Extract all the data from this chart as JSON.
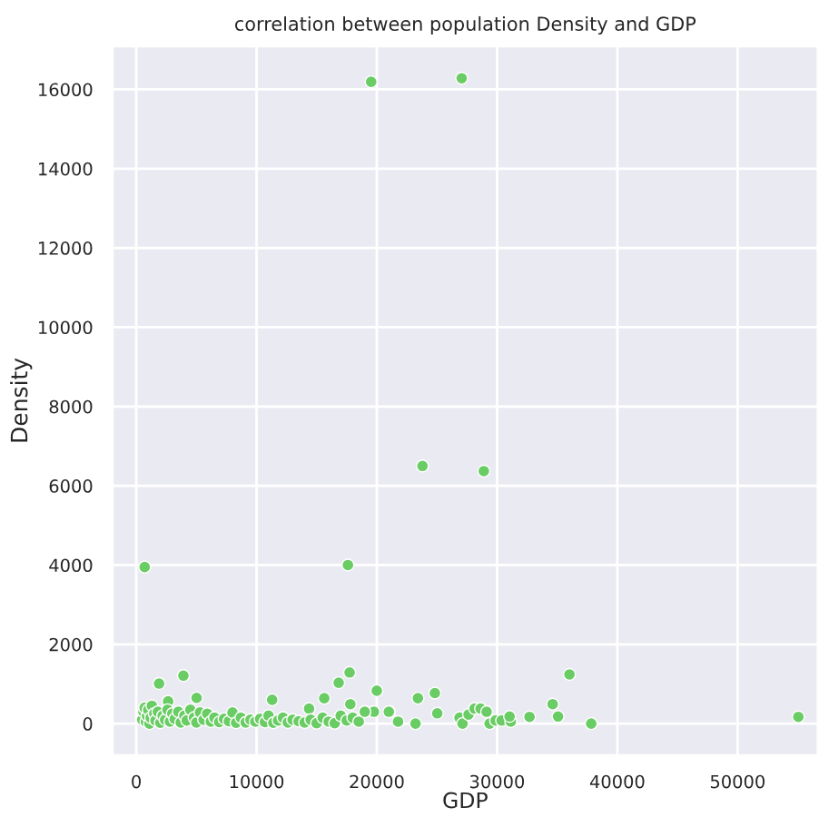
{
  "chart_data": {
    "type": "scatter",
    "title": "correlation between population Density and GDP",
    "xlabel": "GDP",
    "ylabel": "Density",
    "x": [
      19530,
      27060,
      23800,
      28900,
      700,
      17600,
      1900,
      3920,
      2650,
      5020,
      11300,
      14370,
      15630,
      16830,
      17740,
      17800,
      20000,
      19760,
      21060,
      23420,
      24830,
      25030,
      23220,
      32700,
      34620,
      35070,
      36020,
      37830,
      55050,
      26880,
      27130,
      27630,
      28130,
      28630,
      29130,
      29380,
      29880,
      30380,
      31140,
      31040,
      19010,
      21000,
      21770,
      500,
      600,
      700,
      800,
      900,
      1000,
      1100,
      1200,
      1300,
      1500,
      1600,
      1800,
      2000,
      2200,
      2400,
      2600,
      2800,
      3000,
      3200,
      3500,
      3700,
      4000,
      4200,
      4500,
      4800,
      5000,
      5300,
      5600,
      5900,
      6200,
      6500,
      6900,
      7300,
      7700,
      8000,
      8300,
      8700,
      9100,
      9500,
      9900,
      10300,
      10700,
      11000,
      11400,
      11800,
      12200,
      12600,
      13000,
      13500,
      14000,
      14500,
      15000,
      15500,
      16000,
      16500,
      17000,
      17500,
      18000,
      18500,
      19000
    ],
    "values": [
      16190,
      16280,
      6500,
      6370,
      3950,
      4000,
      1010,
      1210,
      560,
      650,
      600,
      380,
      640,
      1030,
      1290,
      490,
      830,
      300,
      300,
      640,
      770,
      260,
      0,
      170,
      490,
      180,
      1240,
      0,
      170,
      150,
      0,
      230,
      380,
      380,
      300,
      0,
      80,
      80,
      50,
      180,
      300,
      300,
      50,
      100,
      300,
      400,
      50,
      200,
      350,
      0,
      150,
      450,
      250,
      80,
      300,
      20,
      200,
      100,
      350,
      50,
      250,
      120,
      300,
      30,
      200,
      80,
      350,
      150,
      30,
      280,
      100,
      250,
      50,
      150,
      40,
      120,
      60,
      280,
      20,
      150,
      30,
      100,
      50,
      120,
      40,
      200,
      20,
      80,
      150,
      30,
      100,
      60,
      30,
      100,
      10,
      150,
      50,
      10,
      200,
      80,
      150,
      50,
      300
    ],
    "color": "#6acc64",
    "marker": "circle",
    "xlim": [
      -2000,
      56700
    ],
    "ylim": [
      -810,
      17100
    ],
    "xticks": [
      0,
      10000,
      20000,
      30000,
      40000,
      50000
    ],
    "yticks": [
      0,
      2000,
      4000,
      6000,
      8000,
      10000,
      12000,
      14000,
      16000
    ],
    "grid": true
  }
}
